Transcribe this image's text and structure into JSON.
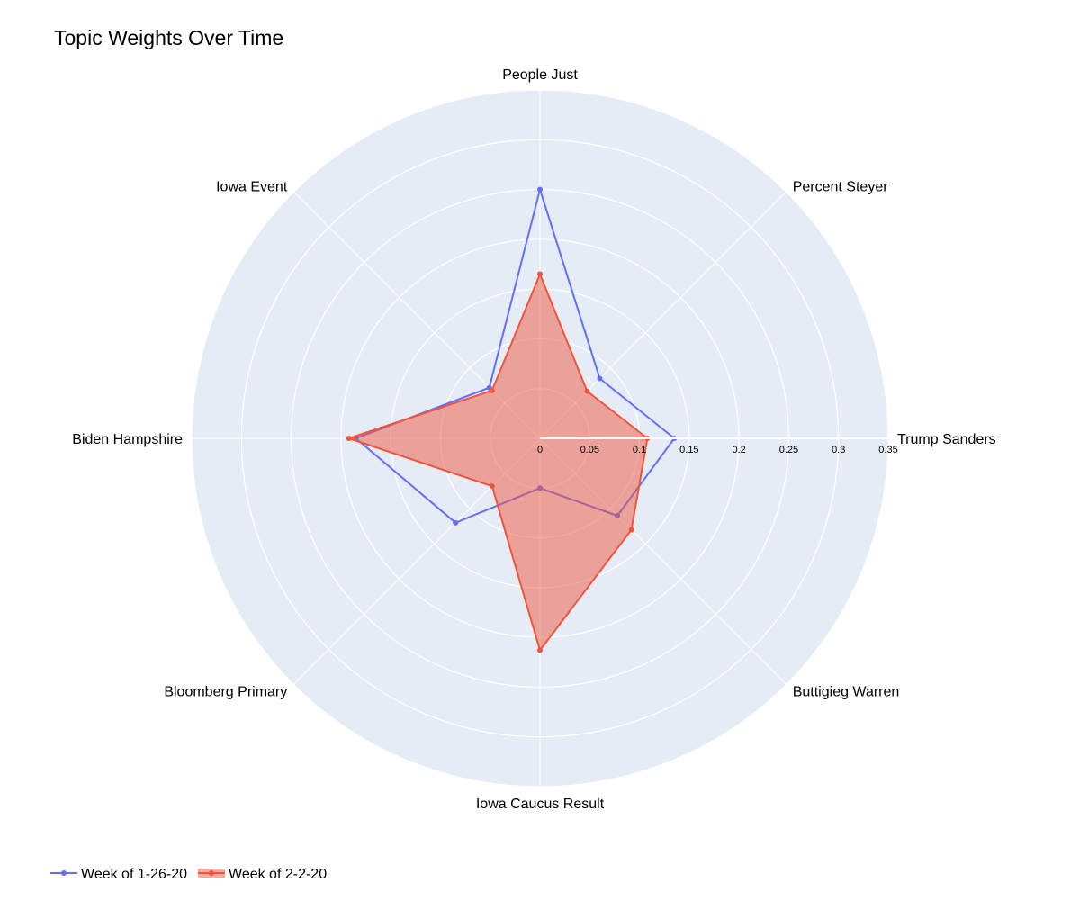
{
  "chart_data": {
    "type": "radar",
    "title": "Topic Weights Over Time",
    "categories": [
      "Trump Sanders",
      "Percent Steyer",
      "People Just",
      "Iowa Event",
      "Biden Hampshire",
      "Bloomberg Primary",
      "Iowa Caucus Result",
      "Buttigieg Warren"
    ],
    "radial_range": [
      0,
      0.35
    ],
    "radial_ticks": [
      0,
      0.05,
      0.1,
      0.15,
      0.2,
      0.25,
      0.3,
      0.35
    ],
    "radial_tick_labels": [
      "0",
      "0.05",
      "0.1",
      "0.15",
      "0.2",
      "0.25",
      "0.3",
      "0.35"
    ],
    "grid": true,
    "legend_position": "bottom-left",
    "series": [
      {
        "name": "Week of 1-26-20",
        "color": "#636efa",
        "fill": false,
        "values": [
          0.135,
          0.085,
          0.25,
          0.072,
          0.185,
          0.12,
          0.05,
          0.11
        ]
      },
      {
        "name": "Week of 2-2-20",
        "color": "#ef553b",
        "fill": true,
        "values": [
          0.108,
          0.067,
          0.165,
          0.068,
          0.192,
          0.068,
          0.213,
          0.13
        ]
      }
    ]
  }
}
